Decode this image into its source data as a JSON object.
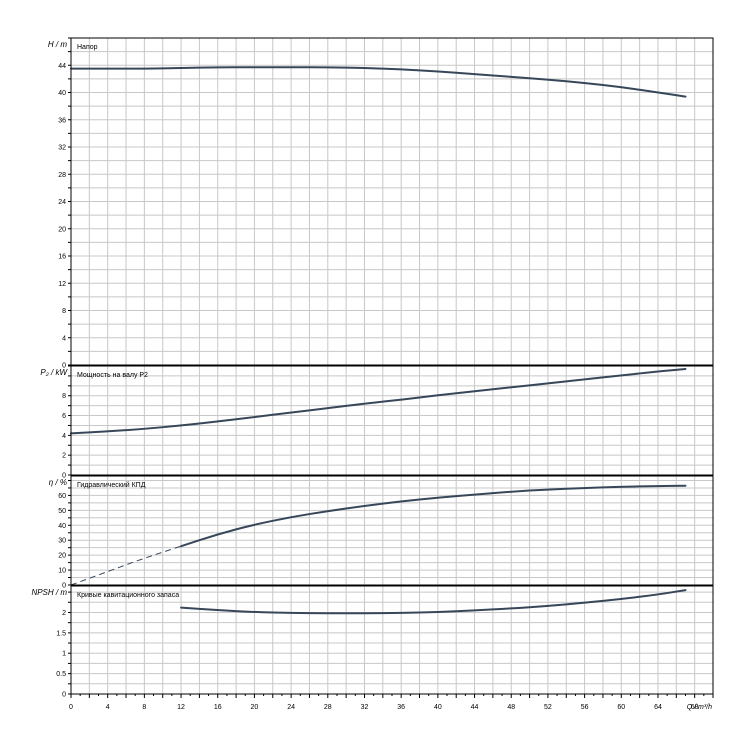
{
  "chart_data": {
    "type": "line",
    "x_axis": {
      "label": "Q / m³/h",
      "min": 0,
      "max": 70,
      "major_ticks": [
        0,
        4,
        8,
        12,
        16,
        20,
        24,
        28,
        32,
        36,
        40,
        44,
        48,
        52,
        56,
        60,
        64,
        68
      ]
    },
    "grid": true,
    "panels": [
      {
        "id": "head",
        "ylabel": "H / m",
        "title": "Напор",
        "ylim": [
          0,
          48
        ],
        "yticks": [
          0,
          4,
          8,
          12,
          16,
          20,
          24,
          28,
          32,
          36,
          40,
          44
        ],
        "series": [
          {
            "x": [
              0,
              4,
              8,
              12,
              16,
              20,
              24,
              28,
              32,
              36,
              40,
              44,
              48,
              52,
              56,
              60,
              64,
              67
            ],
            "y": [
              43.5,
              43.5,
              43.5,
              43.6,
              43.7,
              43.7,
              43.7,
              43.7,
              43.6,
              43.4,
              43.1,
              42.7,
              42.3,
              41.9,
              41.4,
              40.8,
              40.0,
              39.4
            ]
          }
        ]
      },
      {
        "id": "power",
        "ylabel": "P₂ / kW",
        "title": "Мощность на валу P2",
        "ylim": [
          0,
          11
        ],
        "yticks": [
          0,
          2,
          4,
          6,
          8
        ],
        "series": [
          {
            "x": [
              0,
              4,
              8,
              12,
              16,
              20,
              24,
              28,
              32,
              36,
              40,
              44,
              48,
              52,
              56,
              60,
              64,
              67
            ],
            "y": [
              4.2,
              4.4,
              4.65,
              5.0,
              5.4,
              5.85,
              6.3,
              6.75,
              7.2,
              7.6,
              8.05,
              8.45,
              8.85,
              9.25,
              9.65,
              10.05,
              10.45,
              10.7
            ]
          }
        ]
      },
      {
        "id": "efficiency",
        "ylabel": "η / %",
        "title": "Гидравлический КПД",
        "ylim": [
          0,
          73
        ],
        "yticks": [
          0,
          10,
          20,
          30,
          40,
          50,
          60
        ],
        "series": [
          {
            "x": [
              0,
              4,
              8,
              12
            ],
            "y": [
              0,
              9,
              18,
              26
            ],
            "style": "dashed"
          },
          {
            "x": [
              12,
              16,
              20,
              24,
              28,
              32,
              36,
              40,
              44,
              48,
              52,
              56,
              60,
              64,
              67
            ],
            "y": [
              26,
              34,
              40.5,
              45.5,
              49.5,
              53,
              56,
              58.5,
              60.5,
              62.5,
              64,
              65,
              65.8,
              66.3,
              66.5
            ]
          }
        ]
      },
      {
        "id": "npsh",
        "ylabel": "NPSH / m",
        "title": "Кривые кавитационного запаса",
        "ylim": [
          0,
          2.65
        ],
        "yticks": [
          0,
          0.5,
          1,
          1.5,
          2
        ],
        "ytick_labels": [
          "0",
          "0.5",
          "1",
          "1.5",
          "2"
        ],
        "series": [
          {
            "x": [
              12,
              16,
              20,
              24,
              28,
              32,
              36,
              40,
              44,
              48,
              52,
              56,
              60,
              64,
              67
            ],
            "y": [
              2.12,
              2.06,
              2.01,
              1.99,
              1.98,
              1.98,
              1.99,
              2.01,
              2.05,
              2.1,
              2.16,
              2.24,
              2.33,
              2.44,
              2.55
            ]
          }
        ]
      }
    ]
  }
}
